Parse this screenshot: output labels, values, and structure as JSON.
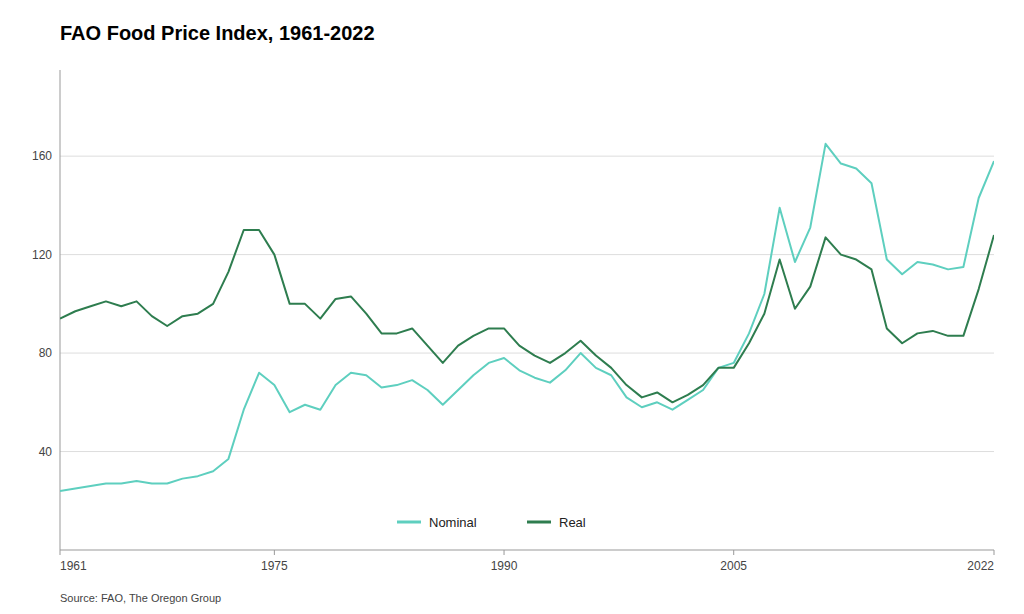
{
  "chart_data": {
    "type": "line",
    "title": "FAO Food Price Index, 1961-2022",
    "source": "Source:  FAO, The Oregon Group",
    "x": [
      1961,
      1962,
      1963,
      1964,
      1965,
      1966,
      1967,
      1968,
      1969,
      1970,
      1971,
      1972,
      1973,
      1974,
      1975,
      1976,
      1977,
      1978,
      1979,
      1980,
      1981,
      1982,
      1983,
      1984,
      1985,
      1986,
      1987,
      1988,
      1989,
      1990,
      1991,
      1992,
      1993,
      1994,
      1995,
      1996,
      1997,
      1998,
      1999,
      2000,
      2001,
      2002,
      2003,
      2004,
      2005,
      2006,
      2007,
      2008,
      2009,
      2010,
      2011,
      2012,
      2013,
      2014,
      2015,
      2016,
      2017,
      2018,
      2019,
      2020,
      2021,
      2022
    ],
    "series": [
      {
        "name": "Nominal",
        "color": "#5ecfbf",
        "values": [
          24,
          25,
          26,
          27,
          27,
          28,
          27,
          27,
          29,
          30,
          32,
          37,
          57,
          72,
          67,
          56,
          59,
          57,
          67,
          72,
          71,
          66,
          67,
          69,
          65,
          59,
          65,
          71,
          76,
          78,
          73,
          70,
          68,
          73,
          80,
          74,
          71,
          62,
          58,
          60,
          57,
          61,
          65,
          74,
          76,
          88,
          104,
          139,
          117,
          131,
          165,
          157,
          155,
          149,
          118,
          112,
          117,
          116,
          114,
          115,
          143,
          158
        ]
      },
      {
        "name": "Real",
        "color": "#2e7d4f",
        "values": [
          94,
          97,
          99,
          101,
          99,
          101,
          95,
          91,
          95,
          96,
          100,
          113,
          130,
          130,
          120,
          100,
          100,
          94,
          102,
          103,
          96,
          88,
          88,
          90,
          83,
          76,
          83,
          87,
          90,
          90,
          83,
          79,
          76,
          80,
          85,
          79,
          74,
          67,
          62,
          64,
          60,
          63,
          67,
          74,
          74,
          84,
          96,
          118,
          98,
          107,
          127,
          120,
          118,
          114,
          90,
          84,
          88,
          89,
          87,
          87,
          106,
          128
        ]
      }
    ],
    "xlim": [
      1961,
      2022
    ],
    "ylim": [
      0,
      195
    ],
    "yticks": [
      40,
      80,
      120,
      160
    ],
    "xticks": [
      1961,
      1975,
      1990,
      2005,
      2022
    ],
    "grid": true,
    "legend": "bottom"
  }
}
